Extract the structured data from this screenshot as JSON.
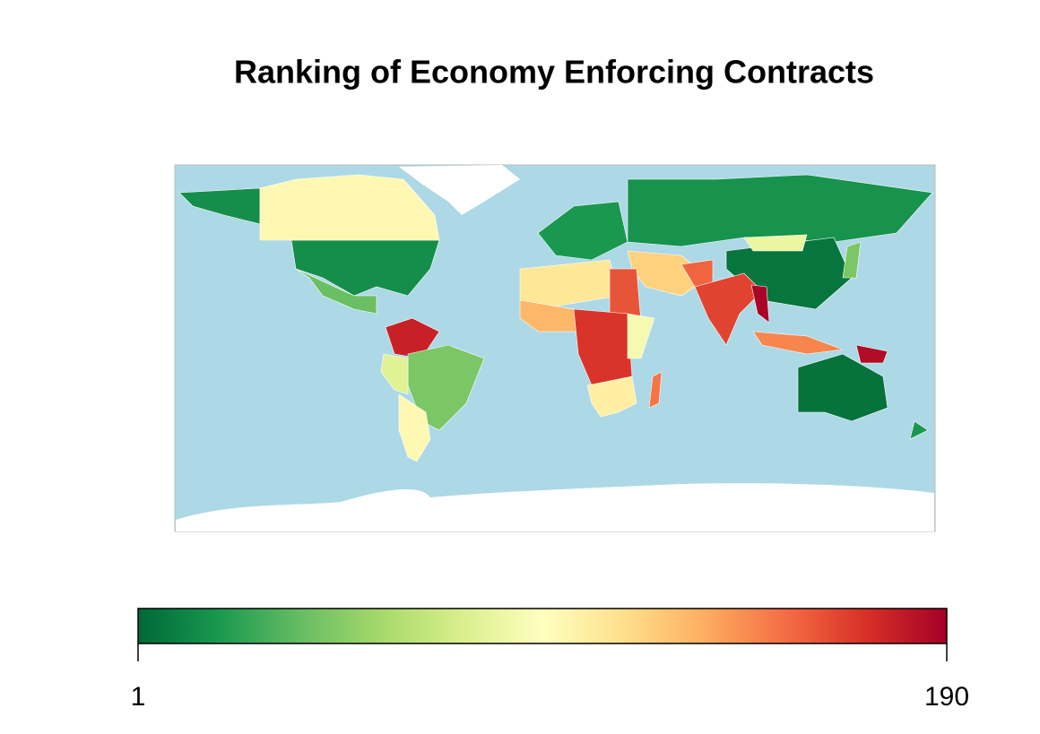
{
  "chart_data": {
    "type": "choropleth",
    "title": "Ranking of Economy   Enforcing Contracts",
    "values": [
      16,
      16,
      100,
      40,
      177,
      45,
      100,
      80,
      20,
      18,
      6,
      85,
      120,
      155,
      165,
      188,
      110,
      160,
      130,
      170,
      105,
      90,
      150,
      145,
      185,
      5,
      20,
      45
    ],
    "scale": {
      "min": 1,
      "max": 190
    },
    "colors": [
      "#006837",
      "#1a9850",
      "#66bd63",
      "#a6d96a",
      "#d9ef8b",
      "#ffffbf",
      "#fee08b",
      "#fdae61",
      "#f46d43",
      "#d73027",
      "#a50026"
    ],
    "ocean_color": "#add8e6"
  }
}
